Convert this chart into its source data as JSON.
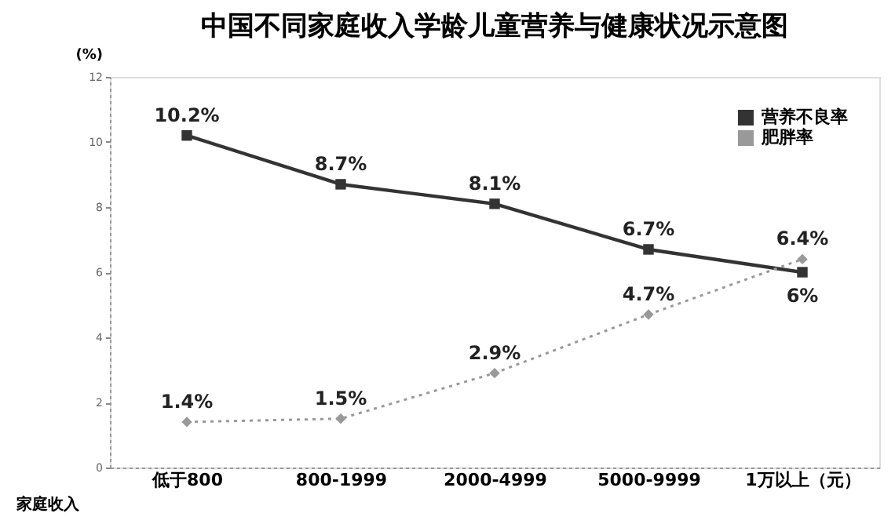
{
  "chart_data": {
    "type": "line",
    "title": "中国不同家庭收入学龄儿童营养与健康状况示意图",
    "ylabel": "(%)",
    "xlabel": "家庭收入",
    "categories": [
      "低于800",
      "800-1999",
      "2000-4999",
      "5000-9999",
      "1万以上（元）"
    ],
    "series": [
      {
        "name": "营养不良率",
        "color": "#333333",
        "marker": "square",
        "line_style": "solid",
        "values": [
          10.2,
          8.7,
          8.1,
          6.7,
          6
        ],
        "value_labels": [
          "10.2%",
          "8.7%",
          "8.1%",
          "6.7%",
          "6%"
        ]
      },
      {
        "name": "肥胖率",
        "color": "#999999",
        "marker": "diamond",
        "line_style": "dotted",
        "values": [
          1.4,
          1.5,
          2.9,
          4.7,
          6.4
        ],
        "value_labels": [
          "1.4%",
          "1.5%",
          "2.9%",
          "4.7%",
          "6.4%"
        ]
      }
    ],
    "ylim": [
      0,
      12
    ],
    "yticks": [
      0,
      2,
      4,
      6,
      8,
      10,
      12
    ],
    "grid": false,
    "legend": "top right"
  }
}
